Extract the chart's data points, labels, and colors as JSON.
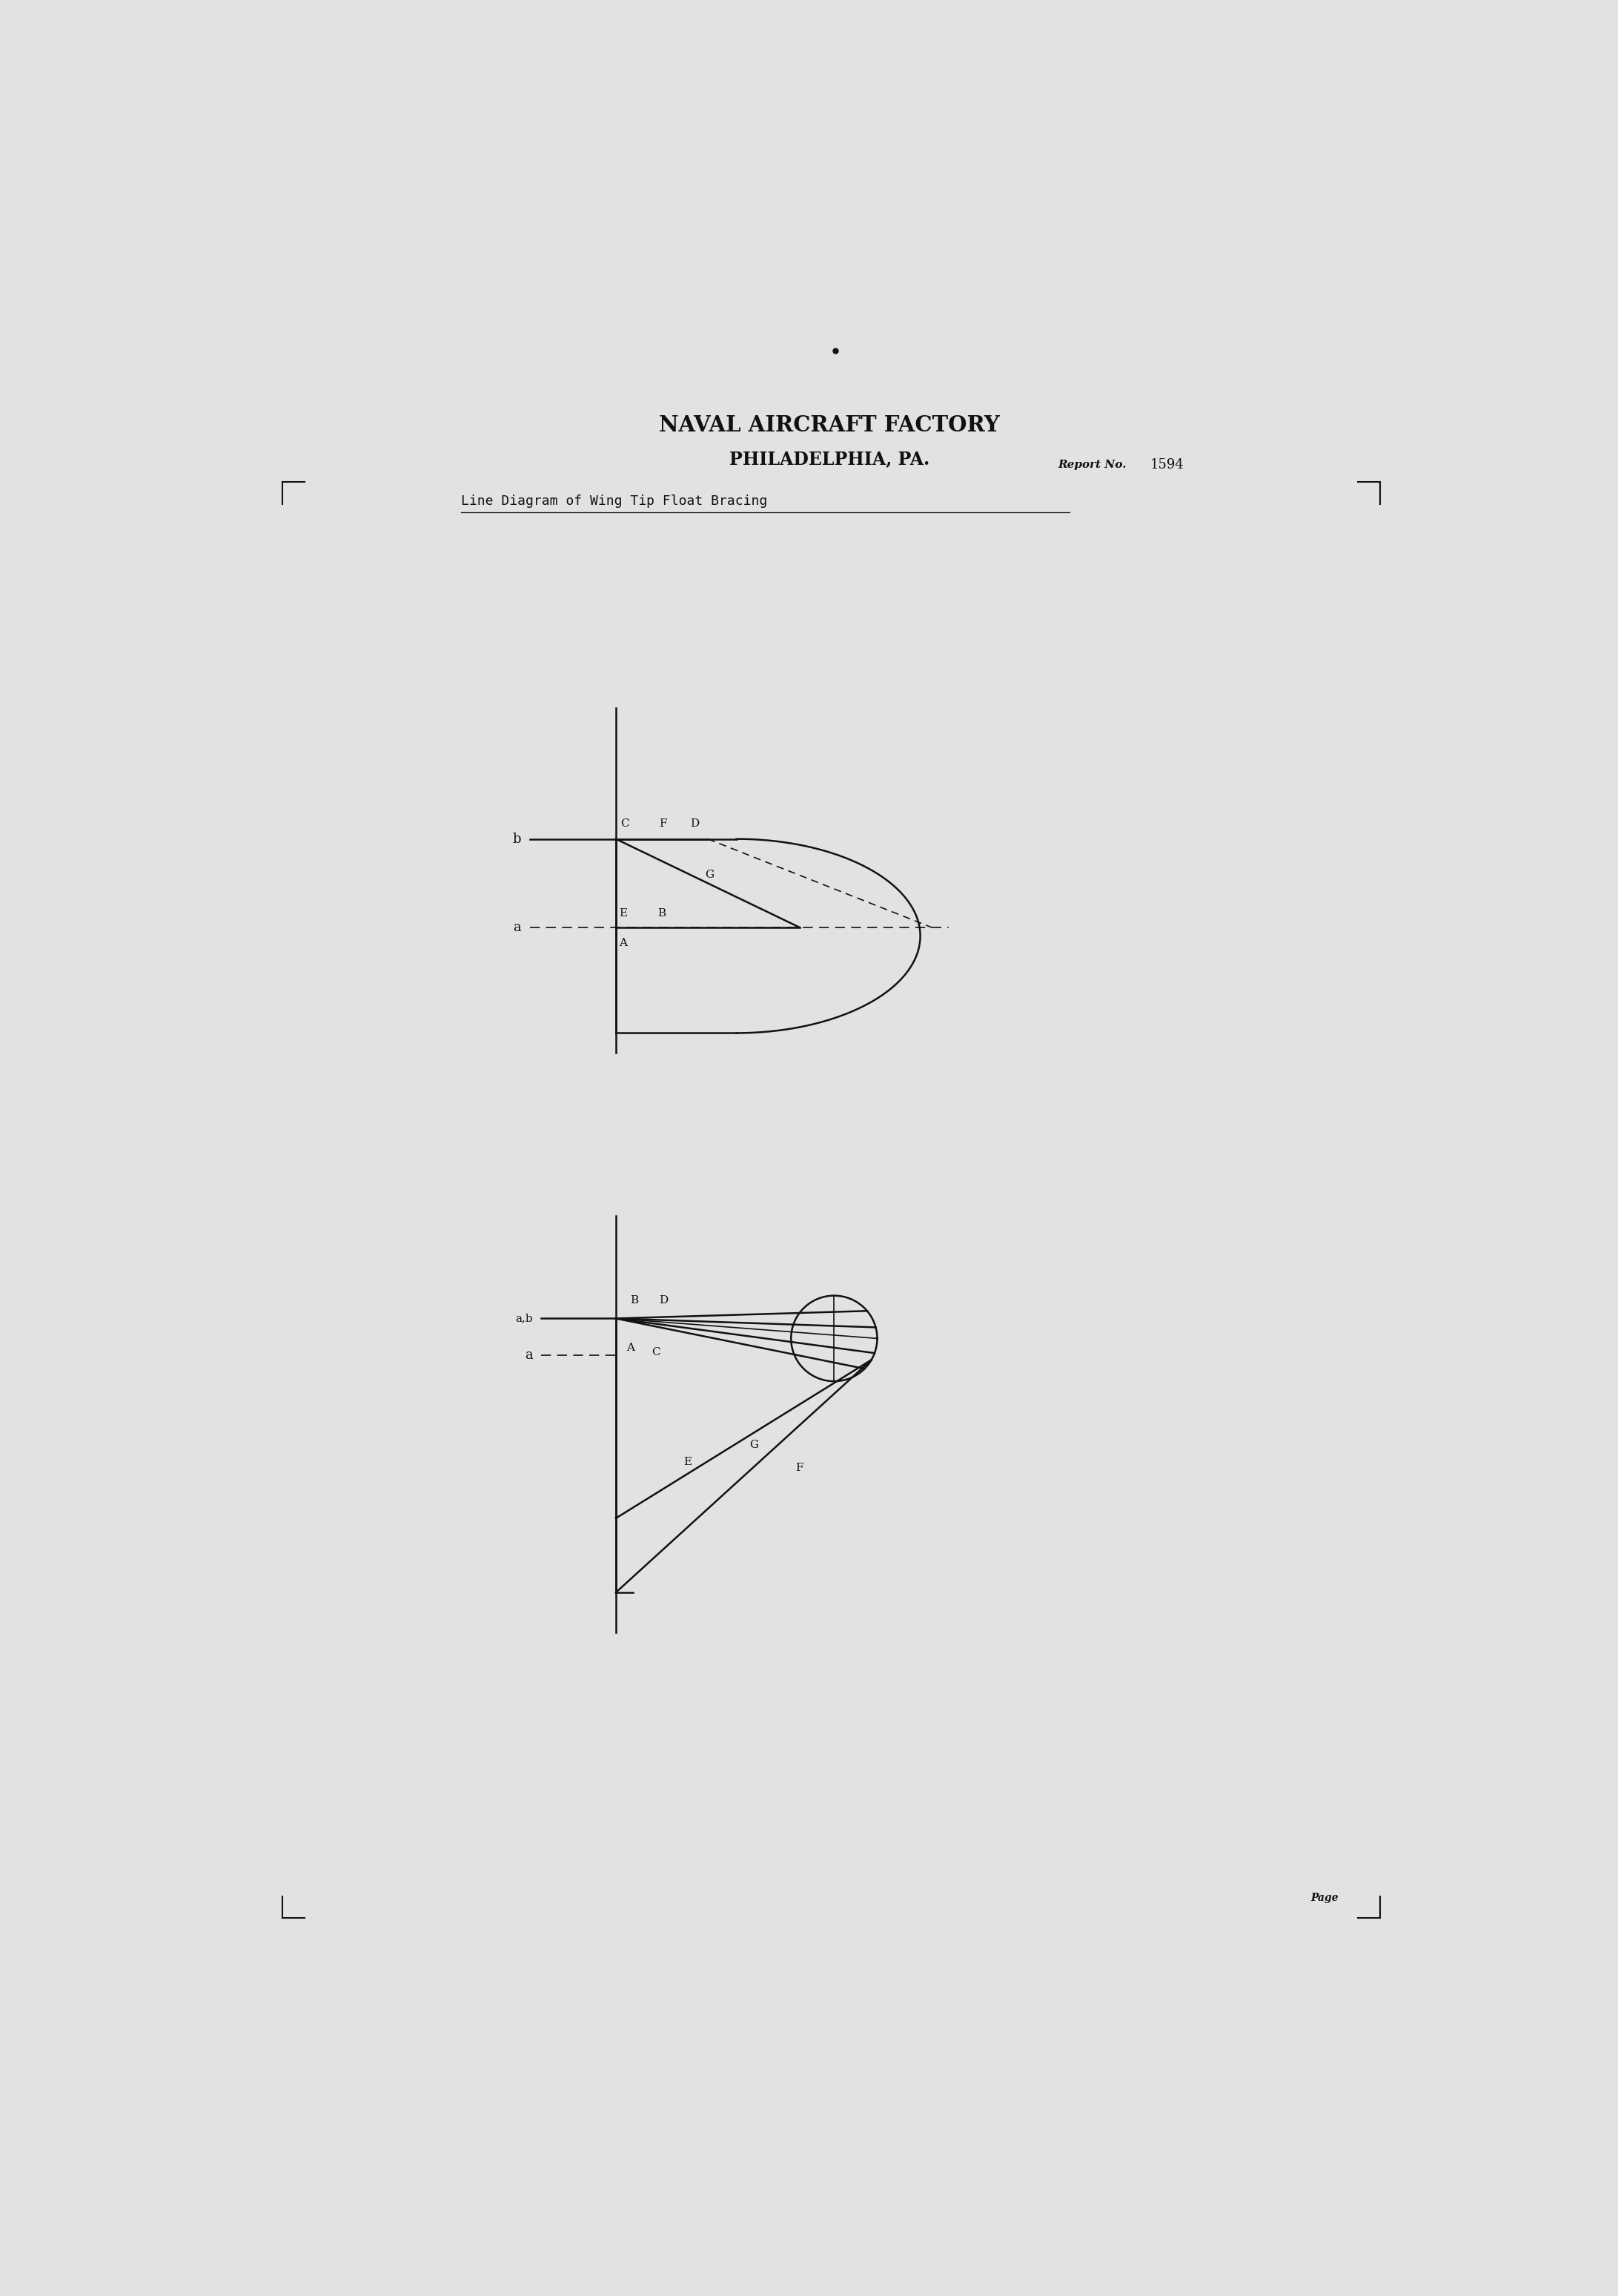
{
  "bg_color": "#e2e2e2",
  "page_width": 21.83,
  "page_height": 30.97,
  "title_line1": "NAVAL AIRCRAFT FACTORY",
  "title_line2": "PHILADELPHIA, PA.",
  "report_label": "Report No.",
  "report_number": "1594",
  "diagram_title": "Line Diagram of Wing Tip Float Bracing",
  "page_label": "Page",
  "font_color": "#111111"
}
